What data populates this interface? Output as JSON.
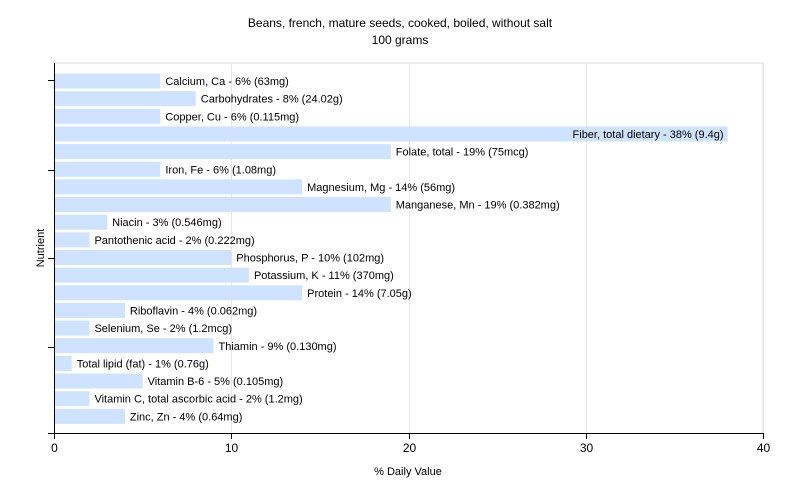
{
  "chart_data": {
    "type": "bar",
    "orientation": "horizontal",
    "title": "Beans, french, mature seeds, cooked, boiled, without salt",
    "subtitle": "100 grams",
    "xlabel": "% Daily Value",
    "ylabel": "Nutrient",
    "xlim": [
      0,
      40
    ],
    "xticks": [
      0,
      10,
      20,
      30,
      40
    ],
    "grid": true,
    "colors": {
      "bar": "#cfe2ff",
      "grid": "#e6e6e6",
      "axis": "#000000",
      "frame": "#dddddd"
    },
    "categories": [
      "Calcium, Ca",
      "Carbohydrates",
      "Copper, Cu",
      "Fiber, total dietary",
      "Folate, total",
      "Iron, Fe",
      "Magnesium, Mg",
      "Manganese, Mn",
      "Niacin",
      "Pantothenic acid",
      "Phosphorus, P",
      "Potassium, K",
      "Protein",
      "Riboflavin",
      "Selenium, Se",
      "Thiamin",
      "Total lipid (fat)",
      "Vitamin B-6",
      "Vitamin C, total ascorbic acid",
      "Zinc, Zn"
    ],
    "values": [
      6,
      8,
      6,
      38,
      19,
      6,
      14,
      19,
      3,
      2,
      10,
      11,
      14,
      4,
      2,
      9,
      1,
      5,
      2,
      4
    ],
    "labels": [
      "Calcium, Ca - 6% (63mg)",
      "Carbohydrates - 8% (24.02g)",
      "Copper, Cu - 6% (0.115mg)",
      "Fiber, total dietary - 38% (9.4g)",
      "Folate, total - 19% (75mcg)",
      "Iron, Fe - 6% (1.08mg)",
      "Magnesium, Mg - 14% (56mg)",
      "Manganese, Mn - 19% (0.382mg)",
      "Niacin - 3% (0.546mg)",
      "Pantothenic acid - 2% (0.222mg)",
      "Phosphorus, P - 10% (102mg)",
      "Potassium, K - 11% (370mg)",
      "Protein - 14% (7.05g)",
      "Riboflavin - 4% (0.062mg)",
      "Selenium, Se - 2% (1.2mcg)",
      "Thiamin - 9% (0.130mg)",
      "Total lipid (fat) - 1% (0.76g)",
      "Vitamin B-6 - 5% (0.105mg)",
      "Vitamin C, total ascorbic acid - 2% (1.2mg)",
      "Zinc, Zn - 4% (0.64mg)"
    ]
  }
}
